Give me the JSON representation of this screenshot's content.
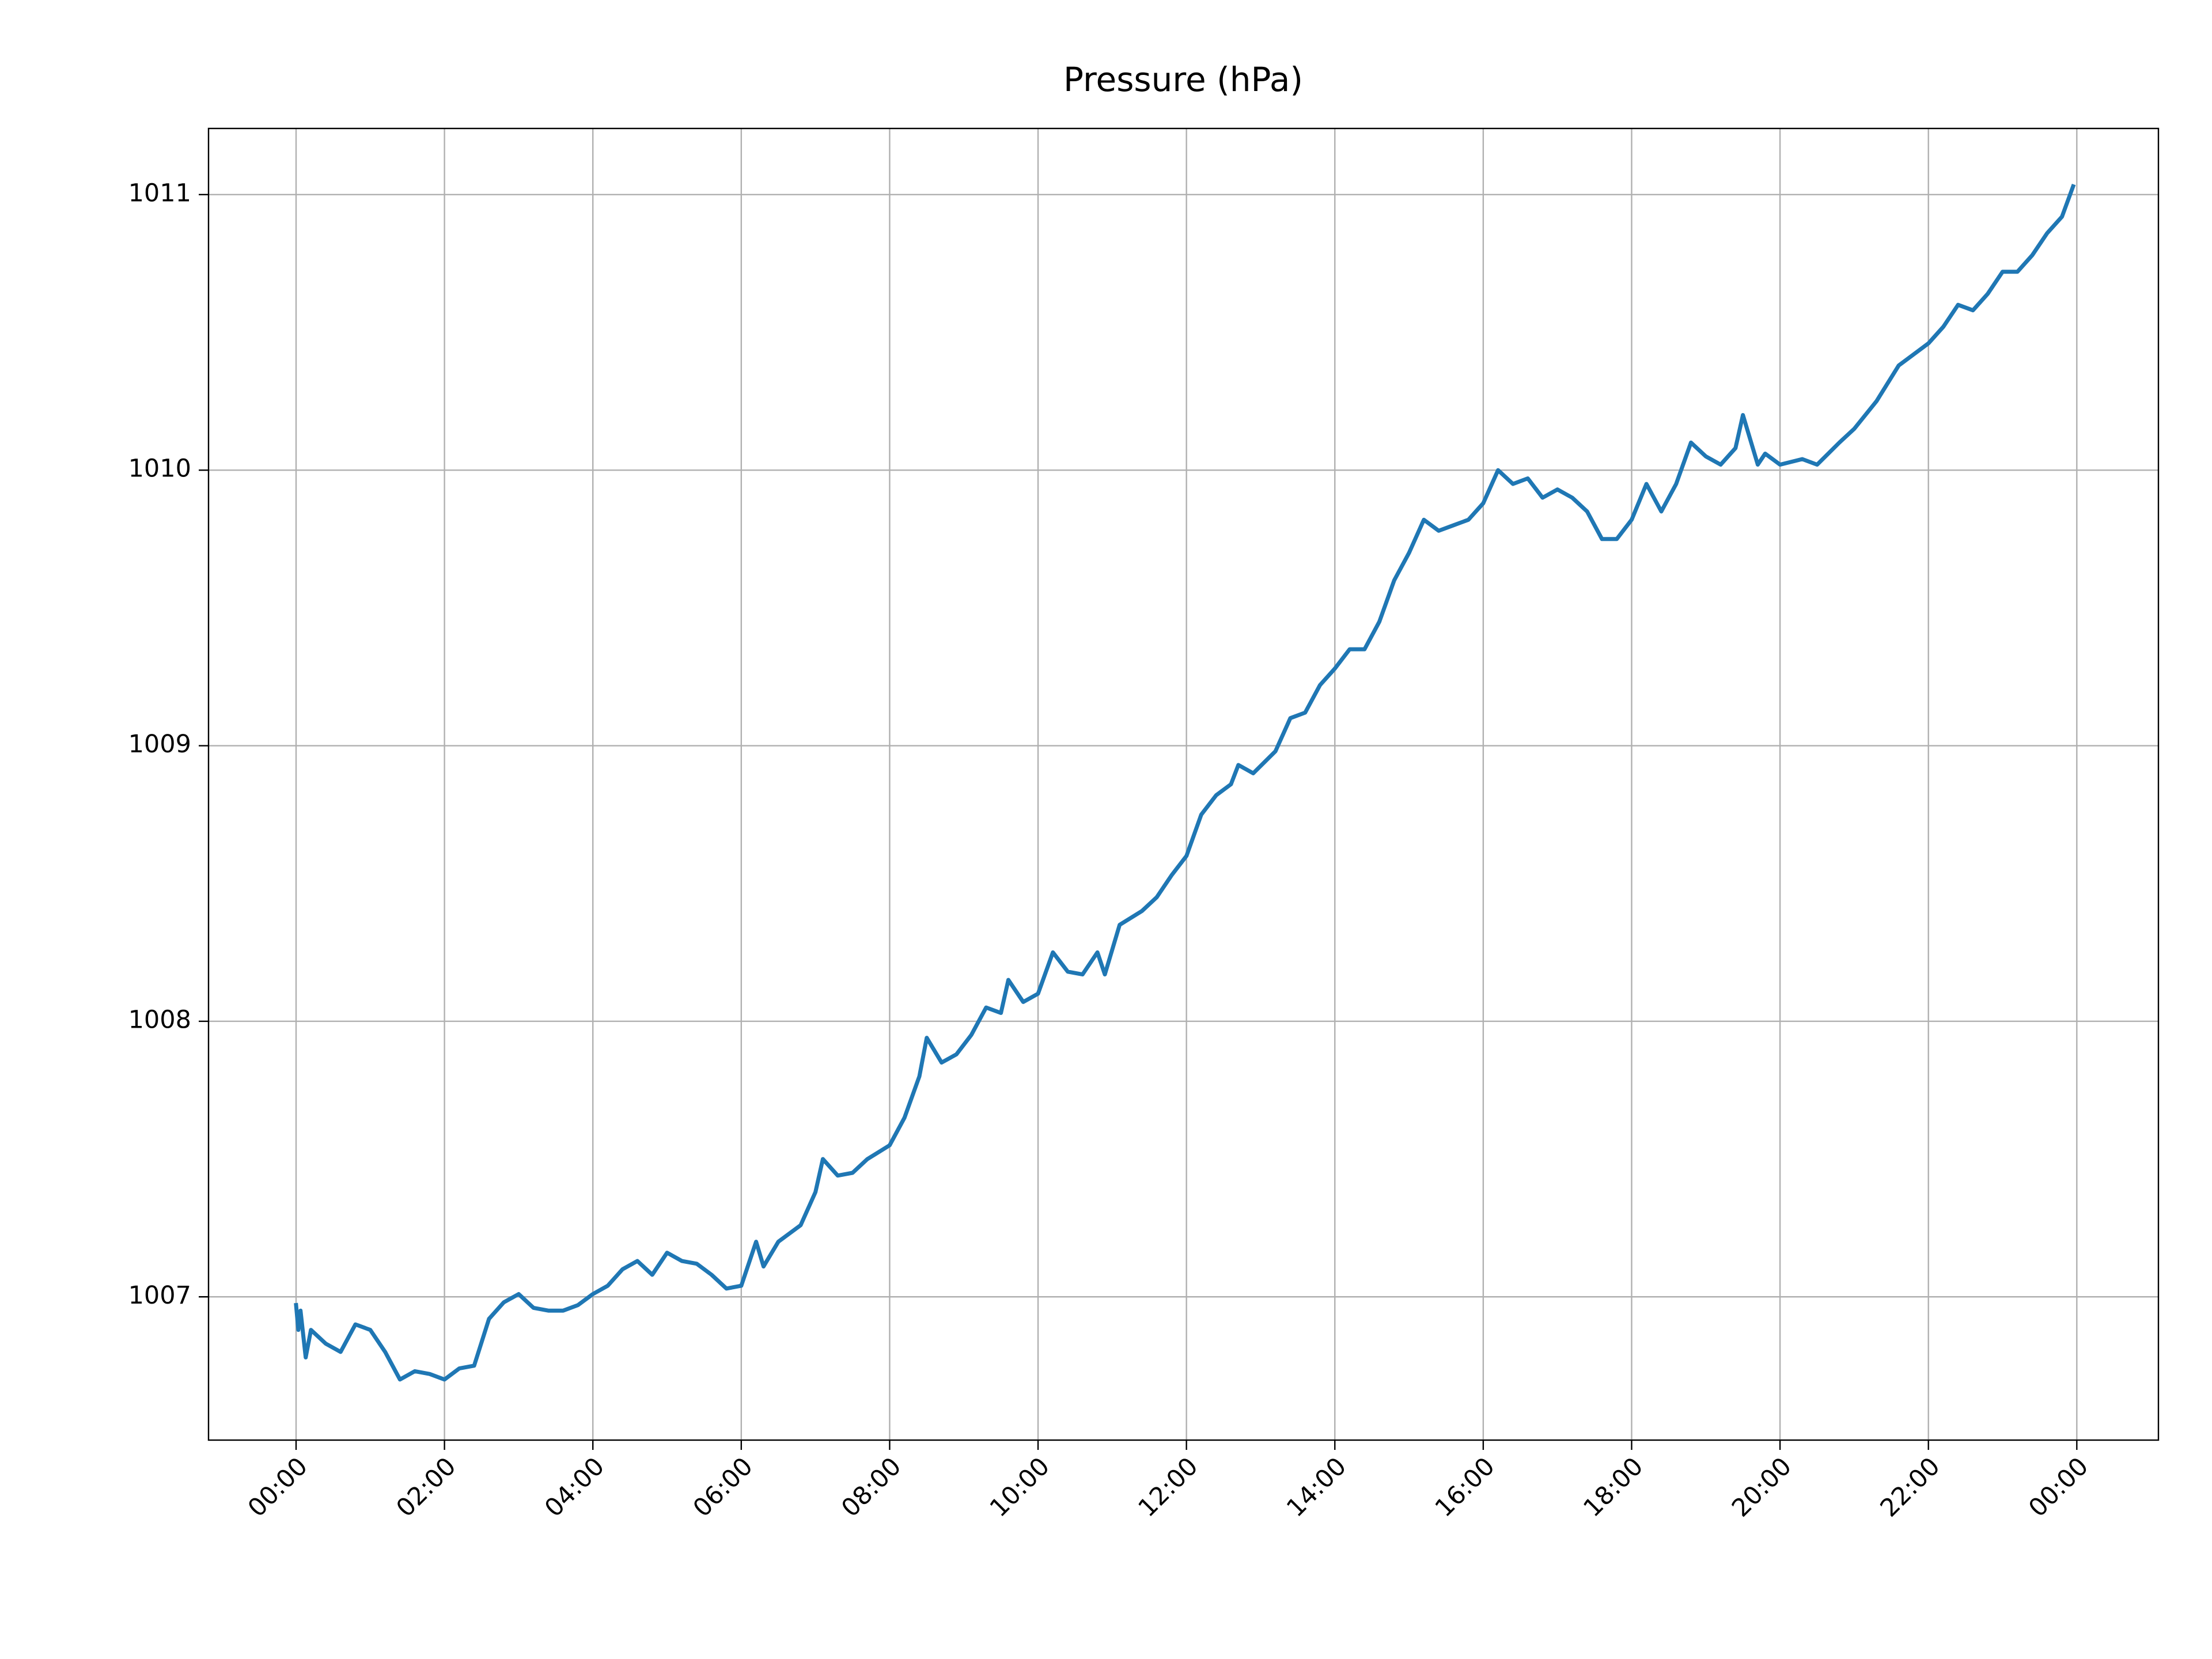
{
  "chart_data": {
    "type": "line",
    "title": "Pressure (hPa)",
    "x": [
      0.0,
      0.03,
      0.06,
      0.13,
      0.2,
      0.4,
      0.6,
      0.8,
      1.0,
      1.2,
      1.4,
      1.6,
      1.8,
      2.0,
      2.2,
      2.4,
      2.6,
      2.8,
      3.0,
      3.2,
      3.4,
      3.6,
      3.8,
      4.0,
      4.2,
      4.4,
      4.6,
      4.8,
      5.0,
      5.2,
      5.4,
      5.6,
      5.8,
      6.0,
      6.2,
      6.3,
      6.5,
      6.8,
      7.0,
      7.1,
      7.3,
      7.5,
      7.7,
      8.0,
      8.2,
      8.4,
      8.5,
      8.7,
      8.9,
      9.1,
      9.3,
      9.5,
      9.6,
      9.8,
      10.0,
      10.2,
      10.4,
      10.6,
      10.8,
      10.9,
      11.1,
      11.4,
      11.6,
      11.8,
      12.0,
      12.2,
      12.4,
      12.6,
      12.7,
      12.9,
      13.2,
      13.4,
      13.6,
      13.8,
      14.0,
      14.2,
      14.4,
      14.6,
      14.8,
      15.0,
      15.2,
      15.4,
      15.6,
      15.8,
      16.0,
      16.2,
      16.4,
      16.6,
      16.8,
      17.0,
      17.2,
      17.4,
      17.6,
      17.8,
      18.0,
      18.2,
      18.4,
      18.6,
      18.8,
      19.0,
      19.2,
      19.4,
      19.5,
      19.7,
      19.8,
      20.0,
      20.3,
      20.5,
      20.8,
      21.0,
      21.3,
      21.6,
      21.8,
      22.0,
      22.2,
      22.4,
      22.6,
      22.8,
      23.0,
      23.2,
      23.4,
      23.6,
      23.8,
      23.95
    ],
    "values": [
      1006.97,
      1006.88,
      1006.95,
      1006.78,
      1006.88,
      1006.83,
      1006.8,
      1006.9,
      1006.88,
      1006.8,
      1006.7,
      1006.73,
      1006.72,
      1006.7,
      1006.74,
      1006.75,
      1006.92,
      1006.98,
      1007.01,
      1006.96,
      1006.95,
      1006.95,
      1006.97,
      1007.01,
      1007.04,
      1007.1,
      1007.13,
      1007.08,
      1007.16,
      1007.13,
      1007.12,
      1007.08,
      1007.03,
      1007.04,
      1007.2,
      1007.11,
      1007.2,
      1007.26,
      1007.38,
      1007.5,
      1007.44,
      1007.45,
      1007.5,
      1007.55,
      1007.65,
      1007.8,
      1007.94,
      1007.85,
      1007.88,
      1007.95,
      1008.05,
      1008.03,
      1008.15,
      1008.07,
      1008.1,
      1008.25,
      1008.18,
      1008.17,
      1008.25,
      1008.17,
      1008.35,
      1008.4,
      1008.45,
      1008.53,
      1008.6,
      1008.75,
      1008.82,
      1008.86,
      1008.93,
      1008.9,
      1008.98,
      1009.1,
      1009.12,
      1009.22,
      1009.28,
      1009.35,
      1009.35,
      1009.45,
      1009.6,
      1009.7,
      1009.82,
      1009.78,
      1009.8,
      1009.82,
      1009.88,
      1010.0,
      1009.95,
      1009.97,
      1009.9,
      1009.93,
      1009.9,
      1009.85,
      1009.75,
      1009.75,
      1009.82,
      1009.95,
      1009.85,
      1009.95,
      1010.1,
      1010.05,
      1010.02,
      1010.08,
      1010.2,
      1010.02,
      1010.06,
      1010.02,
      1010.04,
      1010.02,
      1010.1,
      1010.15,
      1010.25,
      1010.38,
      1010.42,
      1010.46,
      1010.52,
      1010.6,
      1010.58,
      1010.64,
      1010.72,
      1010.72,
      1010.78,
      1010.86,
      1010.92,
      1011.03
    ],
    "color": "#1f77b4",
    "xlim": [
      -1.18,
      25.1
    ],
    "xticks": [
      {
        "value": 0,
        "label": "00:00"
      },
      {
        "value": 2,
        "label": "02:00"
      },
      {
        "value": 4,
        "label": "04:00"
      },
      {
        "value": 6,
        "label": "06:00"
      },
      {
        "value": 8,
        "label": "08:00"
      },
      {
        "value": 10,
        "label": "10:00"
      },
      {
        "value": 12,
        "label": "12:00"
      },
      {
        "value": 14,
        "label": "14:00"
      },
      {
        "value": 16,
        "label": "16:00"
      },
      {
        "value": 18,
        "label": "18:00"
      },
      {
        "value": 20,
        "label": "20:00"
      },
      {
        "value": 22,
        "label": "22:00"
      },
      {
        "value": 24,
        "label": "00:00"
      }
    ],
    "ylim": [
      1006.48,
      1011.24
    ],
    "yticks": [
      1007,
      1008,
      1009,
      1010,
      1011
    ],
    "grid": true
  }
}
